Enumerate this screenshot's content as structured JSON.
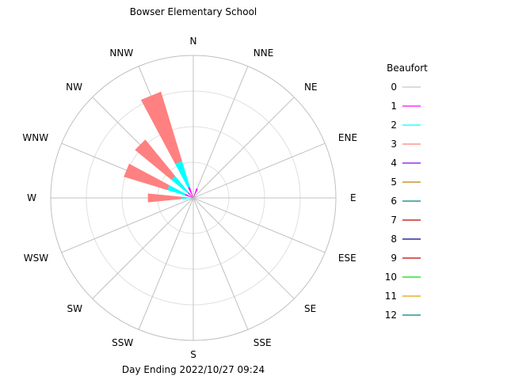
{
  "chart_data": {
    "type": "windrose",
    "title": "Bowser Elementary School",
    "footer": "Day Ending 2022/10/27 09:24",
    "directions": [
      "N",
      "NNE",
      "NE",
      "ENE",
      "E",
      "ESE",
      "SE",
      "SSE",
      "S",
      "SSW",
      "SW",
      "WSW",
      "W",
      "WNW",
      "NW",
      "NNW"
    ],
    "legend": {
      "title": "Beaufort",
      "entries": [
        {
          "label": "0",
          "color": "#c8c8c8"
        },
        {
          "label": "1",
          "color": "#ff00ff"
        },
        {
          "label": "2",
          "color": "#00ffff"
        },
        {
          "label": "3",
          "color": "#ff8080"
        },
        {
          "label": "4",
          "color": "#8000ff"
        },
        {
          "label": "5",
          "color": "#c08000"
        },
        {
          "label": "6",
          "color": "#008080"
        },
        {
          "label": "7",
          "color": "#c00000"
        },
        {
          "label": "8",
          "color": "#000080"
        },
        {
          "label": "9",
          "color": "#c00000"
        },
        {
          "label": "10",
          "color": "#00e000"
        },
        {
          "label": "11",
          "color": "#e0a000"
        },
        {
          "label": "12",
          "color": "#008080"
        }
      ]
    },
    "rmax": 100,
    "rings": [
      25,
      50,
      75,
      100
    ],
    "petals": [
      {
        "direction": "N",
        "segments": [
          {
            "beaufort": "1",
            "value": 0
          },
          {
            "beaufort": "2",
            "value": 0
          },
          {
            "beaufort": "3",
            "value": 0
          }
        ]
      },
      {
        "direction": "NNE",
        "segments": [
          {
            "beaufort": "1",
            "value": 7
          },
          {
            "beaufort": "2",
            "value": 0
          },
          {
            "beaufort": "3",
            "value": 0
          }
        ]
      },
      {
        "direction": "NE",
        "segments": [
          {
            "beaufort": "1",
            "value": 0
          },
          {
            "beaufort": "2",
            "value": 0
          },
          {
            "beaufort": "3",
            "value": 0
          }
        ]
      },
      {
        "direction": "ENE",
        "segments": [
          {
            "beaufort": "1",
            "value": 0
          },
          {
            "beaufort": "2",
            "value": 0
          },
          {
            "beaufort": "3",
            "value": 0
          }
        ]
      },
      {
        "direction": "E",
        "segments": [
          {
            "beaufort": "1",
            "value": 0
          },
          {
            "beaufort": "2",
            "value": 0
          },
          {
            "beaufort": "3",
            "value": 0
          }
        ]
      },
      {
        "direction": "ESE",
        "segments": [
          {
            "beaufort": "1",
            "value": 0
          },
          {
            "beaufort": "2",
            "value": 0
          },
          {
            "beaufort": "3",
            "value": 0
          }
        ]
      },
      {
        "direction": "SE",
        "segments": [
          {
            "beaufort": "1",
            "value": 0
          },
          {
            "beaufort": "2",
            "value": 0
          },
          {
            "beaufort": "3",
            "value": 0
          }
        ]
      },
      {
        "direction": "SSE",
        "segments": [
          {
            "beaufort": "1",
            "value": 0
          },
          {
            "beaufort": "2",
            "value": 0
          },
          {
            "beaufort": "3",
            "value": 0
          }
        ]
      },
      {
        "direction": "S",
        "segments": [
          {
            "beaufort": "1",
            "value": 0
          },
          {
            "beaufort": "2",
            "value": 0
          },
          {
            "beaufort": "3",
            "value": 0
          }
        ]
      },
      {
        "direction": "SSW",
        "segments": [
          {
            "beaufort": "1",
            "value": 0
          },
          {
            "beaufort": "2",
            "value": 0
          },
          {
            "beaufort": "3",
            "value": 0
          }
        ]
      },
      {
        "direction": "SW",
        "segments": [
          {
            "beaufort": "1",
            "value": 0
          },
          {
            "beaufort": "2",
            "value": 0
          },
          {
            "beaufort": "3",
            "value": 0
          }
        ]
      },
      {
        "direction": "WSW",
        "segments": [
          {
            "beaufort": "1",
            "value": 0
          },
          {
            "beaufort": "2",
            "value": 0
          },
          {
            "beaufort": "3",
            "value": 0
          }
        ]
      },
      {
        "direction": "W",
        "segments": [
          {
            "beaufort": "1",
            "value": 0
          },
          {
            "beaufort": "2",
            "value": 8
          },
          {
            "beaufort": "3",
            "value": 24
          }
        ]
      },
      {
        "direction": "WNW",
        "segments": [
          {
            "beaufort": "1",
            "value": 6
          },
          {
            "beaufort": "2",
            "value": 13
          },
          {
            "beaufort": "3",
            "value": 32
          }
        ]
      },
      {
        "direction": "NW",
        "segments": [
          {
            "beaufort": "1",
            "value": 5
          },
          {
            "beaufort": "2",
            "value": 15
          },
          {
            "beaufort": "3",
            "value": 33
          }
        ]
      },
      {
        "direction": "NNW",
        "segments": [
          {
            "beaufort": "1",
            "value": 8
          },
          {
            "beaufort": "2",
            "value": 19
          },
          {
            "beaufort": "3",
            "value": 51
          }
        ]
      }
    ]
  }
}
